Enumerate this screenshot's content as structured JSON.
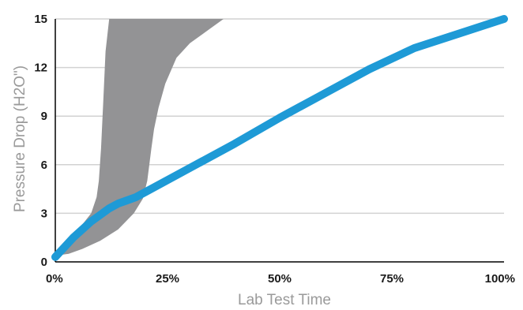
{
  "chart_data": {
    "type": "area",
    "title": "",
    "xlabel": "Lab Test Time",
    "ylabel": "Pressure Drop (H2O\")",
    "xlim": [
      0,
      100
    ],
    "ylim": [
      0,
      15
    ],
    "x_ticks": [
      0,
      25,
      50,
      75,
      100
    ],
    "x_tick_labels": [
      "0%",
      "25%",
      "50%",
      "75%",
      "100%"
    ],
    "y_ticks": [
      0,
      3,
      6,
      9,
      12,
      15
    ],
    "y_tick_labels": [
      "0",
      "3",
      "6",
      "9",
      "12",
      "15"
    ],
    "grid": "horizontal",
    "legend": "none",
    "colors": {
      "line": "#1e9ad6",
      "band": "#939395",
      "grid": "#d2d2d2",
      "axis": "#000000"
    },
    "series": [
      {
        "kind": "band",
        "upper": [
          [
            0.5,
            0.4
          ],
          [
            3,
            1.2
          ],
          [
            6,
            2.3
          ],
          [
            8,
            3.0
          ],
          [
            9.2,
            4.0
          ],
          [
            9.7,
            5.0
          ],
          [
            10.2,
            7.0
          ],
          [
            10.7,
            10.0
          ],
          [
            11.2,
            13.0
          ],
          [
            12.0,
            15.0
          ]
        ],
        "lower": [
          [
            37.5,
            15.0
          ],
          [
            34,
            14.3
          ],
          [
            30,
            13.5
          ],
          [
            27,
            12.6
          ],
          [
            24.5,
            11.0
          ],
          [
            23,
            9.5
          ],
          [
            22,
            8.2
          ],
          [
            21.4,
            7.0
          ],
          [
            20.5,
            5.0
          ],
          [
            19.5,
            3.9
          ],
          [
            17.5,
            3.0
          ],
          [
            14,
            2.0
          ],
          [
            10,
            1.3
          ],
          [
            6,
            0.8
          ],
          [
            3,
            0.5
          ],
          [
            0.5,
            0.4
          ]
        ]
      },
      {
        "kind": "line",
        "points": [
          [
            0,
            0.3
          ],
          [
            2,
            0.9
          ],
          [
            4,
            1.5
          ],
          [
            6,
            2.0
          ],
          [
            8,
            2.5
          ],
          [
            10,
            2.9
          ],
          [
            12,
            3.3
          ],
          [
            14,
            3.6
          ],
          [
            16,
            3.8
          ],
          [
            18,
            4.0
          ],
          [
            20,
            4.3
          ],
          [
            30,
            5.8
          ],
          [
            40,
            7.3
          ],
          [
            50,
            8.9
          ],
          [
            60,
            10.4
          ],
          [
            70,
            11.9
          ],
          [
            80,
            13.2
          ],
          [
            90,
            14.1
          ],
          [
            100,
            15.0
          ]
        ]
      }
    ]
  }
}
